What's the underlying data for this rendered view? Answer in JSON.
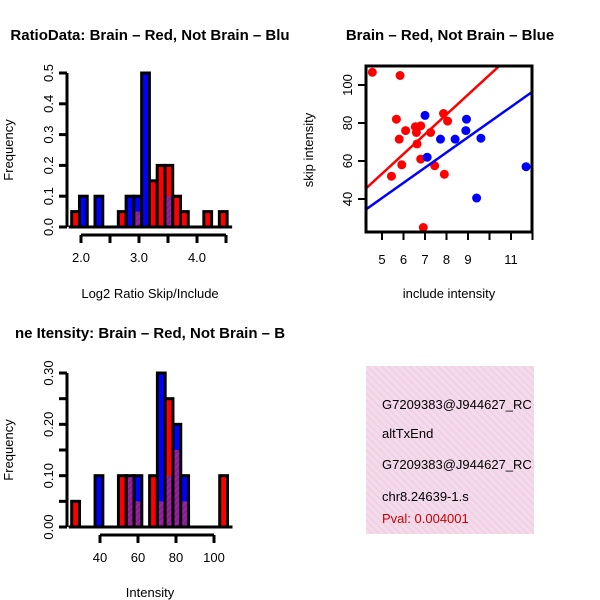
{
  "colors": {
    "brain": "#ff0000",
    "not_brain": "#0000ff",
    "overlap": "#a020a0",
    "pval": "#cc0000",
    "box_bg": "#f6d6ee"
  },
  "chart_data": [
    {
      "type": "bar",
      "title": "RatioData: Brain – Red, Not Brain – Blu",
      "xlabel": "Log2 Ratio Skip/Include",
      "ylabel": "Frequency",
      "bin_start": 1.84,
      "bin_width": 0.134,
      "series": [
        {
          "name": "Brain",
          "color": "red",
          "values": [
            0.05,
            0,
            0,
            0,
            0,
            0,
            0.05,
            0,
            0.05,
            0,
            0.15,
            0.2,
            0.2,
            0.1,
            0.05,
            0,
            0,
            0.05,
            0,
            0.05
          ]
        },
        {
          "name": "Not Brain",
          "color": "blue",
          "values": [
            0,
            0.1,
            0,
            0.1,
            0,
            0,
            0,
            0.1,
            0.1,
            0.5,
            0,
            0,
            0.1,
            0,
            0,
            0,
            0,
            0,
            0,
            0
          ]
        }
      ],
      "xticks": [
        2.0,
        2.5,
        3.0,
        3.5,
        4.0,
        4.5
      ],
      "xtick_labels": [
        "2.0",
        "",
        "3.0",
        "",
        "4.0",
        ""
      ],
      "yticks": [
        0,
        0.1,
        0.2,
        0.3,
        0.4,
        0.5
      ],
      "ytick_labels": [
        "0.0",
        "0.1",
        "0.2",
        "0.3",
        "0.4",
        "0.5"
      ],
      "xlim": [
        1.84,
        4.5
      ],
      "ylim": [
        0,
        0.5
      ]
    },
    {
      "type": "scatter",
      "title": "Brain – Red, Not Brain – Blue",
      "xlabel": "include intensity",
      "ylabel": "skip intensity",
      "xlim": [
        4.26,
        12.7
      ],
      "ylim": [
        22.6,
        110
      ],
      "xticks": [
        5,
        6,
        7,
        8,
        9,
        10,
        11,
        12
      ],
      "xtick_labels": [
        "5",
        "6",
        "7",
        "8",
        "9",
        "",
        "11",
        ""
      ],
      "yticks": [
        40,
        60,
        80,
        100
      ],
      "ytick_labels": [
        "40",
        "60",
        "80",
        "100"
      ],
      "series": [
        {
          "name": "Brain",
          "color": "red",
          "points": [
            [
              4.55,
              106.7
            ],
            [
              5.84,
              105
            ],
            [
              5.67,
              82
            ],
            [
              5.8,
              71.5
            ],
            [
              6.1,
              76
            ],
            [
              6.55,
              78
            ],
            [
              6.6,
              75
            ],
            [
              6.8,
              78.5
            ],
            [
              6.63,
              69
            ],
            [
              6.8,
              61
            ],
            [
              5.92,
              58
            ],
            [
              5.44,
              52
            ],
            [
              7.26,
              75
            ],
            [
              7.45,
              57.5
            ],
            [
              7.86,
              85
            ],
            [
              8.05,
              81
            ],
            [
              7.9,
              53
            ],
            [
              6.92,
              25
            ]
          ],
          "fit": {
            "slope": 10.4,
            "intercept": 1.3
          }
        },
        {
          "name": "Not Brain",
          "color": "blue",
          "points": [
            [
              7.0,
              84
            ],
            [
              7.1,
              62
            ],
            [
              7.72,
              71.5
            ],
            [
              8.4,
              71.5
            ],
            [
              8.93,
              82
            ],
            [
              8.9,
              76
            ],
            [
              9.6,
              72
            ],
            [
              9.4,
              40.5
            ],
            [
              11.7,
              57
            ]
          ],
          "fit": {
            "slope": 8.0,
            "intercept": 0.5
          }
        }
      ]
    },
    {
      "type": "bar",
      "title": "ne Itensity: Brain – Red, Not Brain – B",
      "xlabel": "Intensity",
      "ylabel": "Frequency",
      "bin_start": 25.1,
      "bin_width": 4.1,
      "series": [
        {
          "name": "Brain",
          "color": "red",
          "values": [
            0.05,
            0,
            0,
            0,
            0,
            0,
            0.1,
            0.1,
            0.05,
            0,
            0.1,
            0.05,
            0.25,
            0.15,
            0.05,
            0,
            0,
            0,
            0,
            0.1
          ]
        },
        {
          "name": "Not Brain",
          "color": "blue",
          "values": [
            0,
            0,
            0,
            0.1,
            0,
            0,
            0,
            0.1,
            0.1,
            0,
            0,
            0.3,
            0.1,
            0.2,
            0.1,
            0,
            0,
            0,
            0,
            0
          ]
        }
      ],
      "xticks": [
        40,
        60,
        80,
        100
      ],
      "xtick_labels": [
        "40",
        "60",
        "80",
        "100"
      ],
      "yticks": [
        0,
        0.05,
        0.1,
        0.15,
        0.2,
        0.25,
        0.3
      ],
      "ytick_labels": [
        "0.00",
        "",
        "0.10",
        "",
        "0.20",
        "",
        "0.30"
      ],
      "xlim": [
        25.1,
        107
      ],
      "ylim": [
        0,
        0.3
      ]
    }
  ],
  "info_box": {
    "lines": [
      "G7209383@J944627_RC",
      "altTxEnd",
      "G7209383@J944627_RC",
      "chr8.24639-1.s"
    ],
    "pval": "Pval: 0.004001"
  }
}
